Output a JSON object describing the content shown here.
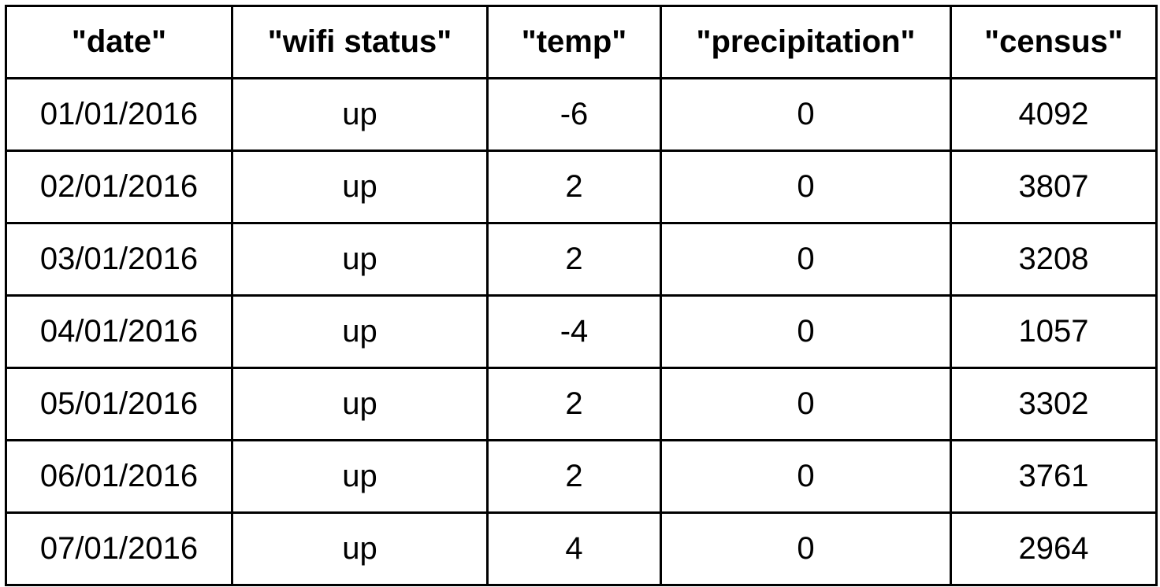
{
  "table": {
    "headers": [
      "\"date\"",
      "\"wifi status\"",
      "\"temp\"",
      "\"precipitation\"",
      "\"census\""
    ],
    "rows": [
      [
        "01/01/2016",
        "up",
        "-6",
        "0",
        "4092"
      ],
      [
        "02/01/2016",
        "up",
        "2",
        "0",
        "3807"
      ],
      [
        "03/01/2016",
        "up",
        "2",
        "0",
        "3208"
      ],
      [
        "04/01/2016",
        "up",
        "-4",
        "0",
        "1057"
      ],
      [
        "05/01/2016",
        "up",
        "2",
        "0",
        "3302"
      ],
      [
        "06/01/2016",
        "up",
        "2",
        "0",
        "3761"
      ],
      [
        "07/01/2016",
        "up",
        "4",
        "0",
        "2964"
      ]
    ]
  }
}
